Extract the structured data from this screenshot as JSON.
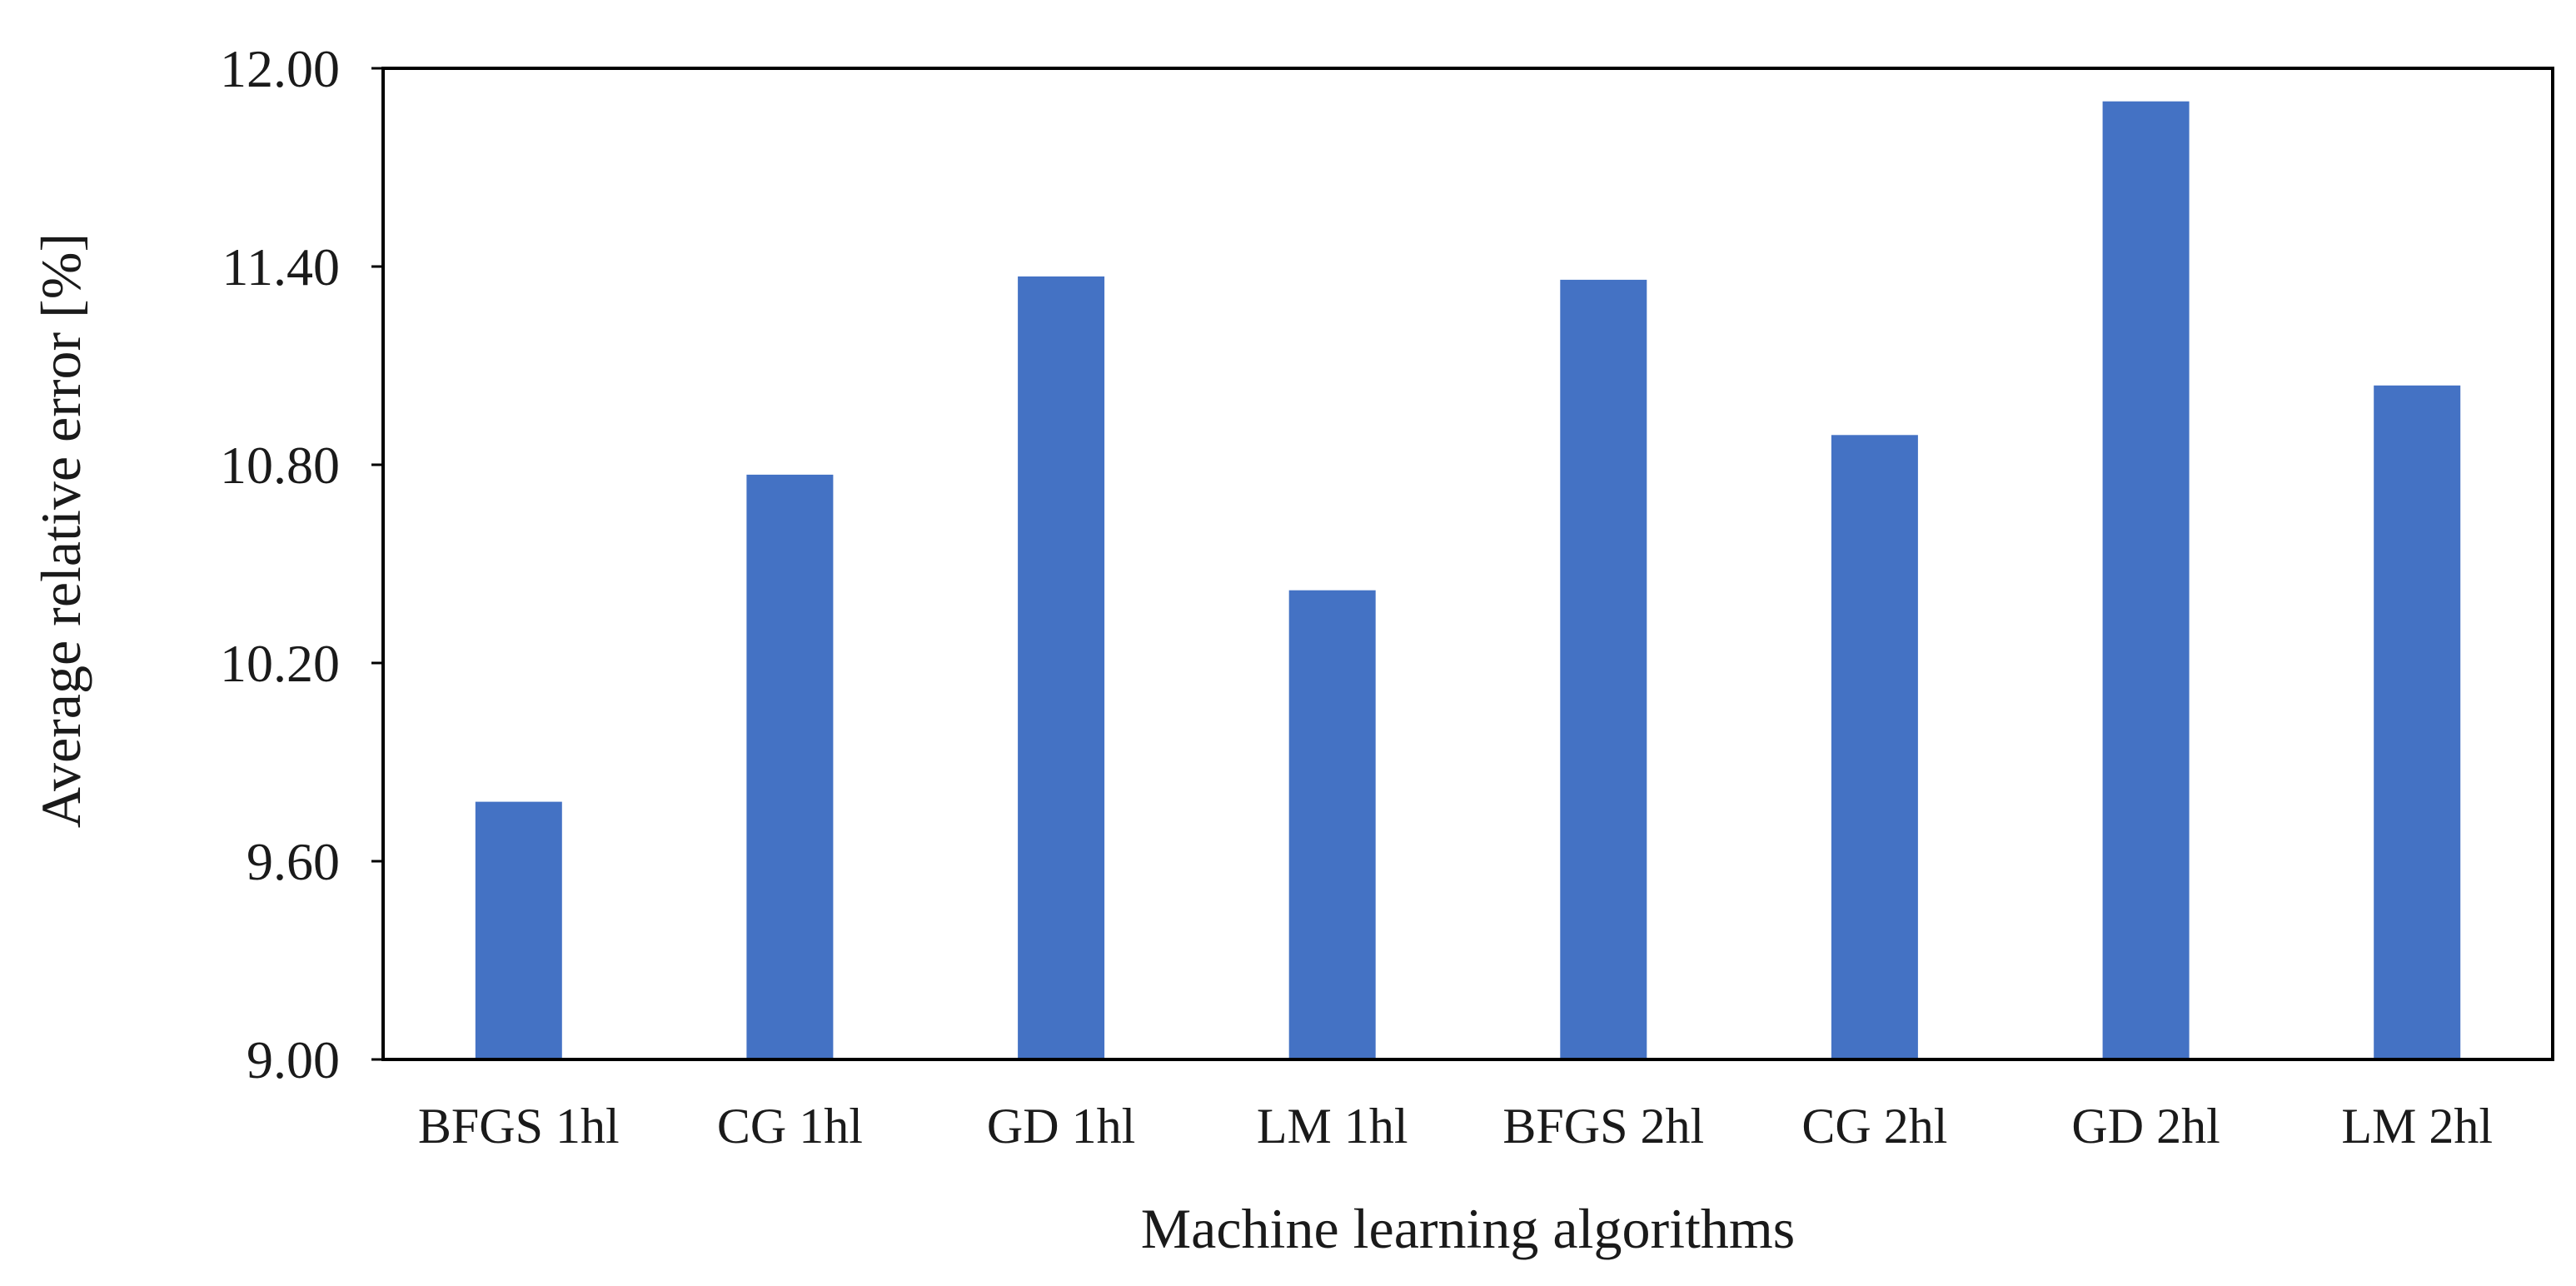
{
  "chart_data": {
    "type": "bar",
    "title": "",
    "xlabel": "Machine learning algorithms",
    "ylabel": "Average relative error [%]",
    "categories": [
      "BFGS 1hl",
      "CG 1hl",
      "GD 1hl",
      "LM 1hl",
      "BFGS 2hl",
      "CG 2hl",
      "GD 2hl",
      "LM 2hl"
    ],
    "values": [
      9.78,
      10.77,
      11.37,
      10.42,
      11.36,
      10.89,
      11.9,
      11.04
    ],
    "ylim": [
      9.0,
      12.0
    ],
    "yticks": [
      "9.00",
      "9.60",
      "10.20",
      "10.80",
      "11.40",
      "12.00"
    ],
    "bar_color": "#4472C4",
    "grid": false,
    "legend": "none"
  }
}
